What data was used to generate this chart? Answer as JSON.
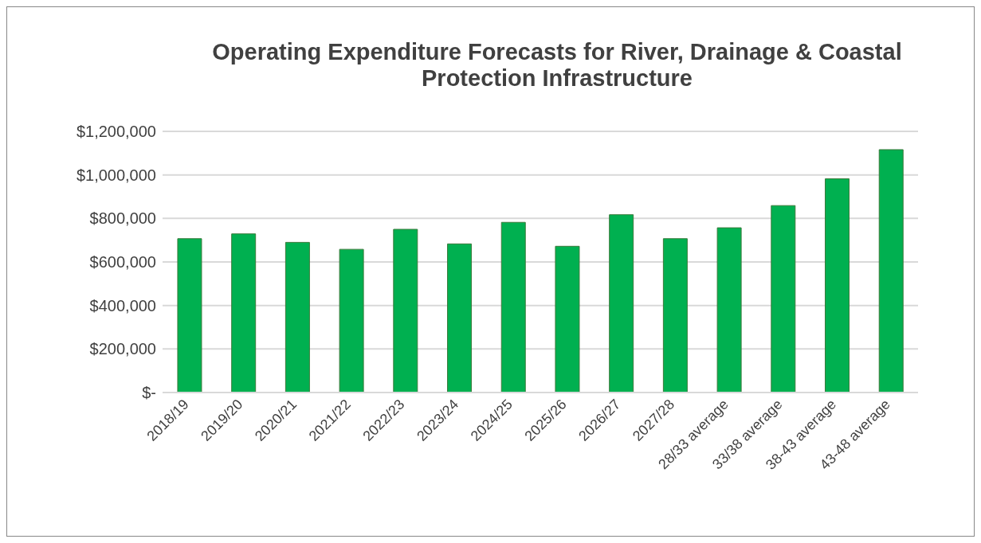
{
  "chart_data": {
    "type": "bar",
    "title": "Operating Expenditure Forecasts for River, Drainage & Coastal Protection Infrastructure",
    "categories": [
      "2018/19",
      "2019/20",
      "2020/21",
      "2021/22",
      "2022/23",
      "2023/24",
      "2024/25",
      "2025/26",
      "2026/27",
      "2027/28",
      "28/33 average",
      "33/38 average",
      "38-43 average",
      "43-48 average"
    ],
    "values": [
      707000,
      729000,
      690000,
      658000,
      750000,
      683000,
      782000,
      672000,
      817000,
      707000,
      757000,
      859000,
      982000,
      1116000
    ],
    "color": "#00b050",
    "ylim": [
      0,
      1200000
    ],
    "yticks": [
      {
        "value": 0,
        "label": "$-"
      },
      {
        "value": 200000,
        "label": "$200,000"
      },
      {
        "value": 400000,
        "label": "$400,000"
      },
      {
        "value": 600000,
        "label": "$600,000"
      },
      {
        "value": 800000,
        "label": "$800,000"
      },
      {
        "value": 1000000,
        "label": "$1,000,000"
      },
      {
        "value": 1200000,
        "label": "$1,200,000"
      }
    ],
    "grid": "y",
    "legend": false
  }
}
